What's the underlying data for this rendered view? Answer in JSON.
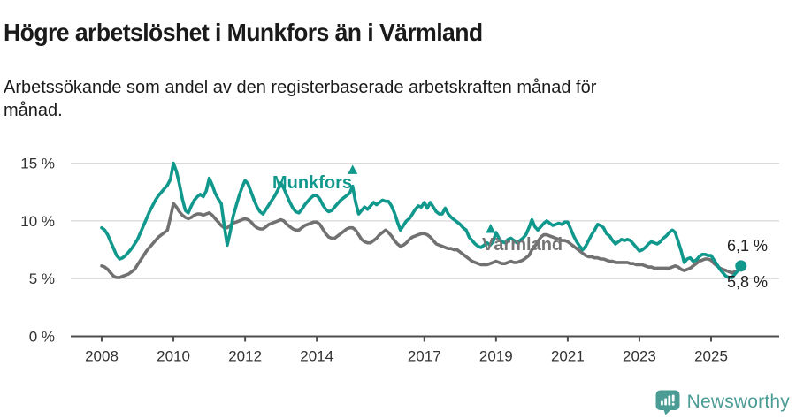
{
  "header": {
    "title": "Högre arbetslöshet i Munkfors än i Värmland",
    "subtitle": "Arbetssökande som andel av den registerbaserade arbetskraften månad för månad."
  },
  "colors": {
    "munkfors_teal": "#10988c",
    "varmland_gray": "#717171",
    "label_gray": "#757575",
    "axis_text": "#333333",
    "axis_line": "#4d4d4d",
    "gridline": "#d9d9d9",
    "logo_teal": "#4a9c95"
  },
  "chart_data": {
    "type": "line",
    "x_start_year": 2008,
    "x_step_months": 1,
    "ylim": [
      0,
      16
    ],
    "grid": "horizontal",
    "legend_position": "inline-labels",
    "yticks": [
      {
        "value": 0,
        "label": "0 %"
      },
      {
        "value": 5,
        "label": "5 %"
      },
      {
        "value": 10,
        "label": "10 %"
      },
      {
        "value": 15,
        "label": "15 %"
      }
    ],
    "xticks": [
      {
        "value": 2008,
        "label": "2008"
      },
      {
        "value": 2010,
        "label": "2010"
      },
      {
        "value": 2012,
        "label": "2012"
      },
      {
        "value": 2014,
        "label": "2014"
      },
      {
        "value": 2017,
        "label": "2017"
      },
      {
        "value": 2019,
        "label": "2019"
      },
      {
        "value": 2021,
        "label": "2021"
      },
      {
        "value": 2023,
        "label": "2023"
      },
      {
        "value": 2025,
        "label": "2025"
      }
    ],
    "series": [
      {
        "name": "Värmland",
        "color": "#717171",
        "values": [
          6.1,
          6.0,
          5.8,
          5.5,
          5.2,
          5.1,
          5.1,
          5.2,
          5.3,
          5.4,
          5.6,
          5.8,
          6.2,
          6.6,
          7.0,
          7.4,
          7.7,
          8.0,
          8.3,
          8.6,
          8.8,
          9.0,
          9.2,
          10.3,
          11.5,
          11.2,
          10.8,
          10.5,
          10.3,
          10.2,
          10.3,
          10.5,
          10.6,
          10.6,
          10.5,
          10.6,
          10.7,
          10.5,
          10.2,
          9.9,
          9.6,
          9.4,
          9.4,
          9.6,
          9.8,
          9.9,
          10.0,
          10.1,
          10.2,
          10.1,
          9.9,
          9.6,
          9.4,
          9.3,
          9.3,
          9.5,
          9.7,
          9.8,
          9.9,
          10.0,
          10.1,
          10.0,
          9.7,
          9.5,
          9.3,
          9.2,
          9.2,
          9.4,
          9.6,
          9.7,
          9.8,
          9.9,
          9.9,
          9.7,
          9.3,
          8.9,
          8.6,
          8.5,
          8.5,
          8.7,
          8.9,
          9.1,
          9.3,
          9.4,
          9.4,
          9.2,
          8.8,
          8.4,
          8.2,
          8.1,
          8.1,
          8.3,
          8.5,
          8.8,
          9.0,
          9.2,
          9.0,
          8.7,
          8.3,
          8.0,
          7.8,
          7.9,
          8.1,
          8.4,
          8.6,
          8.7,
          8.8,
          8.9,
          8.9,
          8.8,
          8.6,
          8.3,
          8.0,
          7.9,
          7.8,
          7.7,
          7.6,
          7.6,
          7.5,
          7.5,
          7.3,
          7.1,
          6.9,
          6.7,
          6.5,
          6.4,
          6.3,
          6.2,
          6.2,
          6.2,
          6.3,
          6.4,
          6.5,
          6.4,
          6.3,
          6.3,
          6.4,
          6.5,
          6.4,
          6.4,
          6.5,
          6.6,
          6.8,
          7.0,
          7.5,
          7.8,
          8.2,
          8.6,
          8.8,
          8.8,
          8.7,
          8.6,
          8.5,
          8.4,
          8.3,
          8.3,
          8.2,
          8.0,
          7.8,
          7.6,
          7.4,
          7.2,
          7.0,
          6.9,
          6.9,
          6.8,
          6.8,
          6.7,
          6.7,
          6.6,
          6.5,
          6.5,
          6.4,
          6.4,
          6.4,
          6.4,
          6.4,
          6.3,
          6.3,
          6.2,
          6.2,
          6.2,
          6.1,
          6.0,
          6.0,
          5.9,
          5.9,
          5.9,
          5.9,
          5.9,
          5.9,
          6.0,
          6.1,
          6.0,
          5.8,
          5.7,
          5.8,
          5.9,
          6.1,
          6.3,
          6.5,
          6.6,
          6.7,
          6.7,
          6.6,
          6.3,
          6.1,
          5.9,
          5.8,
          5.7,
          5.6,
          5.5,
          5.6,
          5.7,
          5.8
        ]
      },
      {
        "name": "Munkfors",
        "color": "#10988c",
        "values": [
          9.4,
          9.2,
          8.8,
          8.2,
          7.6,
          7.0,
          6.7,
          6.8,
          7.0,
          7.3,
          7.6,
          8.0,
          8.4,
          9.0,
          9.6,
          10.2,
          10.8,
          11.3,
          11.8,
          12.2,
          12.5,
          12.8,
          13.1,
          13.6,
          15.0,
          14.3,
          13.2,
          11.9,
          10.9,
          10.7,
          11.3,
          11.8,
          12.1,
          12.3,
          12.1,
          12.6,
          13.7,
          13.1,
          12.4,
          11.9,
          11.5,
          9.6,
          7.9,
          9.0,
          10.4,
          11.3,
          12.2,
          12.9,
          13.5,
          13.2,
          12.5,
          11.8,
          11.2,
          10.8,
          10.6,
          11.0,
          11.4,
          11.8,
          12.2,
          12.7,
          13.3,
          12.8,
          12.2,
          11.6,
          11.1,
          10.8,
          10.7,
          11.0,
          11.4,
          11.7,
          12.0,
          12.2,
          12.2,
          11.9,
          11.4,
          11.0,
          10.8,
          10.9,
          11.2,
          11.5,
          11.8,
          12.0,
          12.2,
          12.4,
          13.0,
          11.6,
          10.6,
          10.9,
          11.2,
          11.0,
          11.3,
          11.6,
          11.4,
          11.6,
          11.8,
          11.7,
          11.7,
          11.3,
          10.7,
          9.9,
          9.2,
          9.6,
          10.0,
          10.2,
          10.6,
          11.0,
          11.3,
          11.2,
          11.6,
          11.1,
          11.6,
          11.2,
          10.8,
          10.6,
          10.6,
          11.1,
          10.6,
          10.3,
          10.1,
          9.9,
          9.7,
          9.4,
          9.2,
          8.6,
          8.3,
          8.0,
          7.8,
          7.7,
          7.9,
          8.1,
          7.9,
          8.2,
          9.0,
          8.5,
          8.2,
          8.1,
          8.4,
          8.5,
          8.3,
          8.1,
          8.3,
          8.5,
          8.8,
          9.4,
          10.1,
          9.5,
          9.2,
          9.5,
          9.8,
          10.0,
          9.8,
          9.6,
          9.7,
          9.8,
          9.7,
          9.9,
          9.9,
          9.3,
          8.7,
          8.2,
          7.8,
          7.5,
          7.8,
          8.3,
          8.8,
          9.2,
          9.7,
          9.6,
          9.4,
          8.9,
          8.7,
          8.3,
          8.0,
          8.2,
          8.4,
          8.3,
          8.4,
          8.3,
          8.0,
          7.7,
          7.4,
          7.5,
          7.7,
          8.0,
          8.2,
          8.1,
          8.0,
          8.2,
          8.5,
          8.7,
          9.0,
          9.2,
          9.0,
          8.2,
          7.4,
          6.4,
          6.7,
          6.8,
          6.5,
          6.6,
          6.9,
          7.1,
          7.1,
          7.0,
          7.0,
          6.6,
          6.2,
          5.8,
          5.5,
          5.2,
          5.1,
          5.1,
          5.4,
          5.7,
          6.1
        ]
      }
    ],
    "peak_markers": [
      {
        "x_year": 2015.0,
        "value": 14.4
      },
      {
        "x_year": 2018.85,
        "value": 9.3
      }
    ],
    "end_dot_series": "Munkfors",
    "end_label_top": "6,1 %",
    "end_label_bottom": "5,8 %"
  },
  "logo": {
    "text": "Newsworthy"
  }
}
